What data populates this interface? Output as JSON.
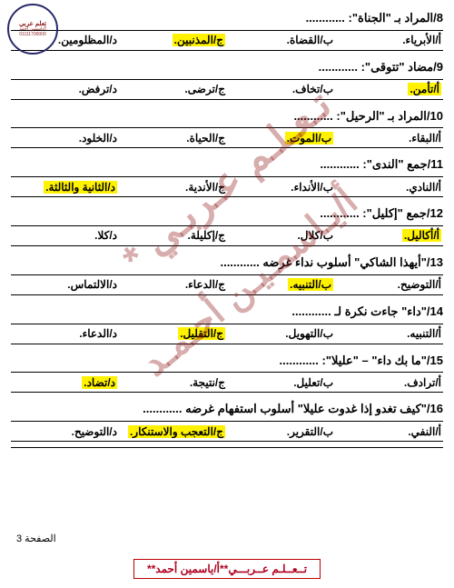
{
  "logo": {
    "title": "تعلم عربي",
    "subtitle": "أ/ياسمين أحمد",
    "phone": "01111700000"
  },
  "watermark_line1": "تـعـلـم عـربـي *",
  "watermark_line2": "أ/يـاسمـيـن أحـمـد",
  "questions": [
    {
      "num": "8",
      "stem": "المراد بـ \"الجناة\": ............",
      "opts": [
        {
          "k": "أ",
          "t": "الأبرياء.",
          "hl": false
        },
        {
          "k": "ب",
          "t": "القضاة.",
          "hl": false
        },
        {
          "k": "ج",
          "t": "المذنبين.",
          "hl": true
        },
        {
          "k": "د",
          "t": "المظلومين.",
          "hl": false
        }
      ]
    },
    {
      "num": "9",
      "stem": "مضاد \"تتوقى\": ............",
      "opts": [
        {
          "k": "أ",
          "t": "تأمن.",
          "hl": true
        },
        {
          "k": "ب",
          "t": "تخاف.",
          "hl": false
        },
        {
          "k": "ج",
          "t": "ترضى.",
          "hl": false
        },
        {
          "k": "د",
          "t": "ترفض.",
          "hl": false
        }
      ]
    },
    {
      "num": "10",
      "stem": "المراد بـ \"الرحيل\": ............",
      "opts": [
        {
          "k": "أ",
          "t": "البقاء.",
          "hl": false
        },
        {
          "k": "ب",
          "t": "الموت.",
          "hl": true
        },
        {
          "k": "ج",
          "t": "الحياة.",
          "hl": false
        },
        {
          "k": "د",
          "t": "الخلود.",
          "hl": false
        }
      ]
    },
    {
      "num": "11",
      "stem": "جمع \"الندى\": ............",
      "opts": [
        {
          "k": "أ",
          "t": "النادي.",
          "hl": false
        },
        {
          "k": "ب",
          "t": "الأنداء.",
          "hl": false
        },
        {
          "k": "ج",
          "t": "الأندية.",
          "hl": false
        },
        {
          "k": "د",
          "t": "الثانية والثالثة.",
          "hl": true
        }
      ]
    },
    {
      "num": "12",
      "stem": "جمع \"إكليل\": ............",
      "opts": [
        {
          "k": "أ",
          "t": "أكاليل.",
          "hl": true
        },
        {
          "k": "ب",
          "t": "كلال.",
          "hl": false
        },
        {
          "k": "ج",
          "t": "إكليلة.",
          "hl": false
        },
        {
          "k": "د",
          "t": "كلا.",
          "hl": false
        }
      ]
    },
    {
      "num": "13",
      "stem": "\"أيهذا الشاكي\" أسلوب نداء غرضه ............",
      "opts": [
        {
          "k": "أ",
          "t": "التوضيح.",
          "hl": false
        },
        {
          "k": "ب",
          "t": "التنبيه.",
          "hl": true
        },
        {
          "k": "ج",
          "t": "الدعاء.",
          "hl": false
        },
        {
          "k": "د",
          "t": "الالتماس.",
          "hl": false
        }
      ]
    },
    {
      "num": "14",
      "stem": "\"داء\" جاءت نكرة لـ ............",
      "opts": [
        {
          "k": "أ",
          "t": "التنبيه.",
          "hl": false
        },
        {
          "k": "ب",
          "t": "التهويل.",
          "hl": false
        },
        {
          "k": "ج",
          "t": "التقليل.",
          "hl": true
        },
        {
          "k": "د",
          "t": "الدعاء.",
          "hl": false
        }
      ]
    },
    {
      "num": "15",
      "stem": "\"ما بك داء\" – \"عليلا\": ............",
      "opts": [
        {
          "k": "أ",
          "t": "ترادف.",
          "hl": false
        },
        {
          "k": "ب",
          "t": "تعليل.",
          "hl": false
        },
        {
          "k": "ج",
          "t": "نتيجة.",
          "hl": false
        },
        {
          "k": "د",
          "t": "تضاد.",
          "hl": true
        }
      ]
    },
    {
      "num": "16",
      "stem": "\"كيف تغدو إذا غدوت عليلا\" أسلوب استفهام غرضه ............",
      "opts": [
        {
          "k": "أ",
          "t": "النفي.",
          "hl": false
        },
        {
          "k": "ب",
          "t": "التقرير.",
          "hl": false
        },
        {
          "k": "ج",
          "t": "التعجب والاستنكار.",
          "hl": true
        },
        {
          "k": "د",
          "t": "التوضيح.",
          "hl": false
        }
      ]
    }
  ],
  "page_label": "الصفحة 3",
  "footer_text": "تــعــلـم عــربـــي**أ/ياسمين أحمد**"
}
